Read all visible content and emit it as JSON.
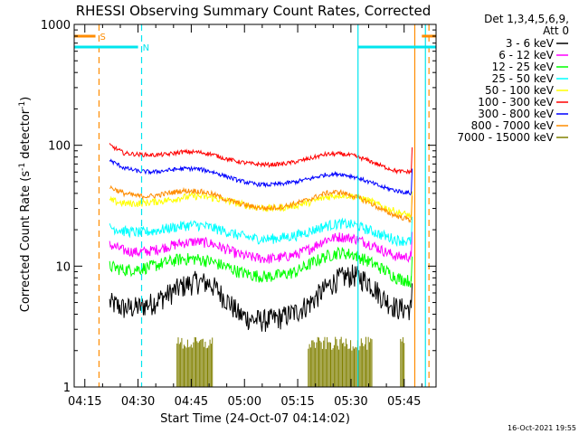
{
  "chart_data": {
    "type": "line",
    "title": "RHESSI Observing Summary Count Rates, Corrected",
    "xlabel": "Start Time (24-Oct-07 04:14:02)",
    "ylabel_main": "Corrected Count Rate (s",
    "ylabel_sup1": "-1",
    "ylabel_mid": " detector",
    "ylabel_sup2": "-1",
    "ylabel_end": ")",
    "y_scale": "log",
    "ylim": [
      1,
      1000
    ],
    "xlim_minutes": [
      "04:12",
      "05:54"
    ],
    "x_ticks": [
      "04:15",
      "04:30",
      "04:45",
      "05:00",
      "05:15",
      "05:30",
      "05:45"
    ],
    "y_ticks": [
      "1",
      "10",
      "100",
      "1000"
    ],
    "legend_header": [
      "Det 1,3,4,5,6,9,",
      "Att 0"
    ],
    "legend_placement": "right",
    "footer_date": "16-Oct-2021 19:55",
    "flags": [
      {
        "label": "S",
        "color": "#ff8c00",
        "start": "04:12",
        "end": "04:18",
        "value": 800
      },
      {
        "label": "N",
        "color": "#00e5ee",
        "start": "04:12",
        "end": "04:30",
        "value": 650
      }
    ],
    "vertical_lines": [
      {
        "time": "04:19",
        "color": "#ff8c00",
        "style": "dashed"
      },
      {
        "time": "04:31",
        "color": "#00e5ee",
        "style": "dashed"
      },
      {
        "time": "05:32",
        "color": "#00e5ee",
        "style": "solid"
      },
      {
        "time": "05:48",
        "color": "#ff8c00",
        "style": "solid"
      },
      {
        "time": "05:51",
        "color": "#00e5ee",
        "style": "solid"
      },
      {
        "time": "05:52",
        "color": "#ff8c00",
        "style": "dashed"
      }
    ],
    "flags2": [
      {
        "color": "#00e5ee",
        "start": "05:32",
        "end": "05:54",
        "value": 650
      },
      {
        "color": "#ff8c00",
        "start": "05:50",
        "end": "05:54",
        "value": 800
      }
    ],
    "data_start": "04:22",
    "data_end": "05:47",
    "series": [
      {
        "name": "3 - 6 keV",
        "color": "#000000",
        "noise": 0.22,
        "values": [
          5,
          4.5,
          4.6,
          5,
          5.8,
          6.8,
          7.5,
          7.2,
          5.5,
          4,
          3.6,
          3.6,
          3.8,
          4.2,
          5,
          6.5,
          8,
          8.5,
          7.5,
          5.5,
          4.5,
          4.5
        ]
      },
      {
        "name": "6 - 12 keV",
        "color": "#ff00ff",
        "noise": 0.1,
        "values": [
          15,
          13.5,
          13,
          13.5,
          14.5,
          15.5,
          16,
          15.5,
          14,
          12.5,
          11.8,
          11.5,
          11.8,
          12.5,
          14,
          16.5,
          17.5,
          17,
          15.5,
          13.5,
          12,
          12
        ]
      },
      {
        "name": "12 - 25 keV",
        "color": "#00ff00",
        "noise": 0.12,
        "values": [
          10,
          9.3,
          9.5,
          10,
          10.8,
          11.5,
          11.5,
          11,
          10,
          9,
          8.4,
          8.2,
          8.5,
          9,
          10.5,
          12,
          13,
          12.5,
          11,
          9.5,
          8,
          7.5
        ]
      },
      {
        "name": "25 - 50 keV",
        "color": "#00ffff",
        "noise": 0.1,
        "values": [
          21,
          19.5,
          19,
          19.5,
          20.5,
          21.5,
          22,
          21,
          19.5,
          18,
          17,
          16.8,
          17.2,
          18,
          19.5,
          21.5,
          22.5,
          22,
          20,
          18,
          16.5,
          16
        ]
      },
      {
        "name": "50 - 100 keV",
        "color": "#ffff00",
        "noise": 0.07,
        "values": [
          35,
          33,
          33,
          34,
          35,
          37,
          38,
          37,
          35,
          33,
          31,
          30,
          30.5,
          32,
          34,
          37,
          39,
          38,
          35,
          31,
          28,
          26
        ]
      },
      {
        "name": "100 - 300 keV",
        "color": "#ff0000",
        "noise": 0.04,
        "values": [
          100,
          86,
          84,
          83,
          84,
          88,
          88,
          85,
          78,
          73,
          70,
          69,
          70,
          73,
          78,
          84,
          85,
          82,
          75,
          67,
          61,
          60
        ]
      },
      {
        "name": "300 - 800 keV",
        "color": "#0000ff",
        "noise": 0.04,
        "values": [
          75,
          65,
          61,
          60,
          62,
          64,
          64,
          61,
          56,
          51,
          48,
          47,
          48,
          50,
          53,
          57,
          58,
          55,
          50,
          45,
          42,
          40
        ]
      },
      {
        "name": "800 - 7000 keV",
        "color": "#ff8c00",
        "noise": 0.05,
        "values": [
          45,
          40,
          38,
          38,
          40,
          42,
          42,
          40,
          36,
          33,
          31,
          30,
          31,
          33,
          36,
          40,
          41,
          38,
          34,
          29,
          26,
          24
        ]
      },
      {
        "name": "7000 - 15000 keV",
        "color": "#808000",
        "noise": 0,
        "values": []
      }
    ],
    "olive_bursts": [
      {
        "start": "04:41",
        "end": "04:51"
      },
      {
        "start": "05:18",
        "end": "05:36"
      },
      {
        "start": "05:44",
        "end": "05:45"
      }
    ]
  }
}
